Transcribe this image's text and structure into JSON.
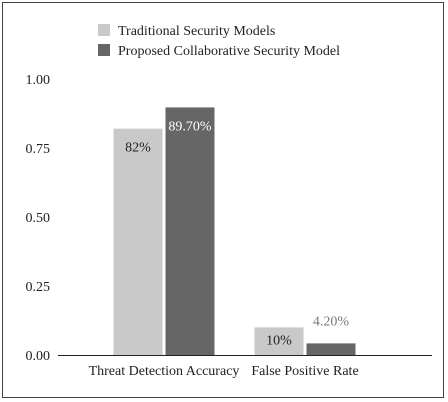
{
  "chart_data": {
    "type": "bar",
    "title": "",
    "xlabel": "",
    "ylabel": "",
    "ylim": [
      0,
      1
    ],
    "yticks": [
      "0.00",
      "0.25",
      "0.50",
      "0.75",
      "1.00"
    ],
    "categories": [
      "Threat Detection Accuracy",
      "False Positive Rate"
    ],
    "series": [
      {
        "name": "Traditional Security Models",
        "values": [
          0.82,
          0.1
        ],
        "labels": [
          "82%",
          "10%"
        ],
        "color": "#c9c9c9"
      },
      {
        "name": "Proposed Collaborative Security Model",
        "values": [
          0.897,
          0.042
        ],
        "labels": [
          "89.70%",
          "4.20%"
        ],
        "color": "#666666"
      }
    ],
    "legend_position": "top-center",
    "grid": false
  }
}
